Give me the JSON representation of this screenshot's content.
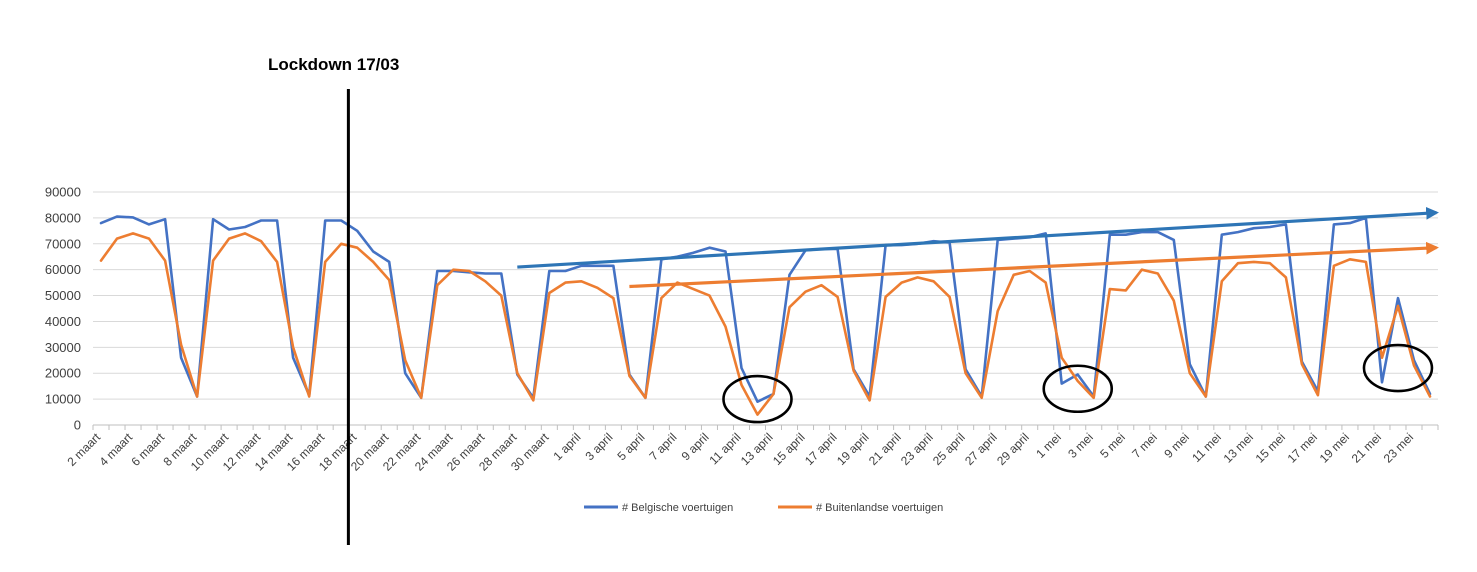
{
  "chart_data": {
    "type": "line",
    "title": "",
    "xlabel": "",
    "ylabel": "",
    "ylim": [
      0,
      90000
    ],
    "yticks": [
      0,
      10000,
      20000,
      30000,
      40000,
      50000,
      60000,
      70000,
      80000,
      90000
    ],
    "grid": true,
    "legend_position": "bottom",
    "x": [
      "2 maart",
      "3 maart",
      "4 maart",
      "5 maart",
      "6 maart",
      "7 maart",
      "8 maart",
      "9 maart",
      "10 maart",
      "11 maart",
      "12 maart",
      "13 maart",
      "14 maart",
      "15 maart",
      "16 maart",
      "17 maart",
      "18 maart",
      "19 maart",
      "20 maart",
      "21 maart",
      "22 maart",
      "23 maart",
      "24 maart",
      "25 maart",
      "26 maart",
      "27 maart",
      "28 maart",
      "29 maart",
      "30 maart",
      "31 maart",
      "1 april",
      "2 april",
      "3 april",
      "4 april",
      "5 april",
      "6 april",
      "7 april",
      "8 april",
      "9 april",
      "10 april",
      "11 april",
      "12 april",
      "13 april",
      "14 april",
      "15 april",
      "16 april",
      "17 april",
      "18 april",
      "19 april",
      "20 april",
      "21 april",
      "22 april",
      "23 april",
      "24 april",
      "25 april",
      "26 april",
      "27 april",
      "28 april",
      "29 april",
      "30 april",
      "1 mei",
      "2 mei",
      "3 mei",
      "4 mei",
      "5 mei",
      "6 mei",
      "7 mei",
      "8 mei",
      "9 mei",
      "10 mei",
      "11 mei",
      "12 mei",
      "13 mei",
      "14 mei",
      "15 mei",
      "16 mei",
      "17 mei",
      "18 mei",
      "19 mei",
      "20 mei",
      "21 mei",
      "22 mei",
      "23 mei",
      "24 mei"
    ],
    "tick_labels": [
      "2 maart",
      "4 maart",
      "6 maart",
      "8 maart",
      "10 maart",
      "12 maart",
      "14 maart",
      "16 maart",
      "18 maart",
      "20 maart",
      "22 maart",
      "24 maart",
      "26 maart",
      "28 maart",
      "30 maart",
      "1 april",
      "3 april",
      "5 april",
      "7 april",
      "9 april",
      "11 april",
      "13 april",
      "15 april",
      "17 april",
      "19 april",
      "21 april",
      "23 april",
      "25 april",
      "27 april",
      "29 april",
      "1 mei",
      "3 mei",
      "5 mei",
      "7 mei",
      "9 mei",
      "11 mei",
      "13 mei",
      "15 mei",
      "17 mei",
      "19 mei",
      "21 mei",
      "23 mei"
    ],
    "series": [
      {
        "name": "# Belgische voertuigen",
        "color": "#4472C4",
        "values": [
          78000,
          80500,
          80200,
          77500,
          79500,
          26000,
          11000,
          79500,
          75500,
          76500,
          79000,
          79000,
          26000,
          11500,
          79000,
          79000,
          75000,
          67000,
          63000,
          20000,
          10500,
          59500,
          59500,
          59000,
          58500,
          58500,
          19500,
          10500,
          59500,
          59500,
          61500,
          61500,
          61500,
          19500,
          10500,
          64000,
          65000,
          66500,
          68500,
          67000,
          22000,
          9000,
          12000,
          58000,
          67500,
          68000,
          68000,
          21500,
          11000,
          69500,
          69500,
          70000,
          71000,
          70500,
          21500,
          11000,
          71500,
          72000,
          72500,
          74000,
          16000,
          19500,
          11000,
          73500,
          73500,
          74500,
          74500,
          71500,
          23500,
          11000,
          73500,
          74500,
          76000,
          76500,
          77500,
          24500,
          13000,
          77500,
          78000,
          80000,
          16500,
          49000,
          25000,
          12000
        ]
      },
      {
        "name": "# Buitenlandse voertuigen",
        "color": "#ED7D31",
        "values": [
          63500,
          72000,
          74000,
          72000,
          63500,
          31000,
          11000,
          63500,
          72000,
          74000,
          71000,
          63000,
          30000,
          11000,
          63000,
          70000,
          68500,
          63000,
          56000,
          25000,
          10500,
          54000,
          60000,
          59500,
          55500,
          50000,
          20000,
          9500,
          51000,
          55000,
          55500,
          53000,
          49000,
          19000,
          10500,
          49000,
          55000,
          52500,
          50000,
          38000,
          15500,
          4000,
          12000,
          45500,
          51500,
          54000,
          49500,
          21000,
          9500,
          49500,
          55000,
          57000,
          55500,
          49500,
          20000,
          10500,
          44000,
          58000,
          59500,
          55000,
          26000,
          17000,
          10500,
          52500,
          52000,
          60000,
          58500,
          48000,
          20000,
          11000,
          55500,
          62500,
          63000,
          62500,
          57000,
          23500,
          11500,
          61500,
          64000,
          63000,
          26000,
          46000,
          23000,
          11000
        ]
      }
    ],
    "annotations": {
      "lockdown_label": "Lockdown 17/03",
      "lockdown_at": "17 maart",
      "trend_blue": {
        "from_x": "28 maart",
        "from_y": 61000,
        "to_x": "24 mei",
        "to_y": 82000,
        "color": "#2E75B6"
      },
      "trend_orange": {
        "from_x": "4 april",
        "from_y": 53500,
        "to_x": "24 mei",
        "to_y": 68500,
        "color": "#ED7D31"
      },
      "circles": [
        {
          "center_x": "12 april",
          "center_y": 10000
        },
        {
          "center_x": "2 mei",
          "center_y": 14000
        },
        {
          "center_x": "22 mei",
          "center_y": 22000
        }
      ]
    }
  }
}
